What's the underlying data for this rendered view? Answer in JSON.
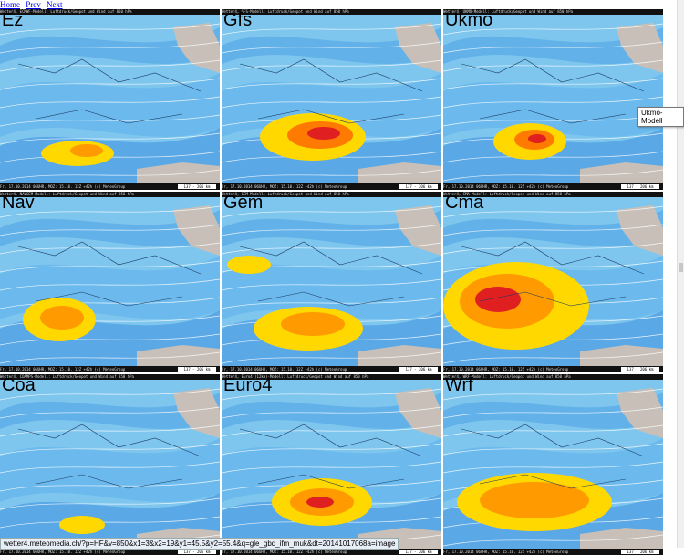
{
  "nav": {
    "home": "Home",
    "prev": "Prev",
    "next": "Next"
  },
  "panels": [
    {
      "name": "Ez",
      "header": "Wetter4, ECMWF-Modell: Luftdruck/Geopot und Wind auf 850 hPa",
      "footer": "Fr, 17.10.2014 06UHR, MOZ: 15.10. 12Z +42h (c) MeteoGroup",
      "scale": "137 - 206 km"
    },
    {
      "name": "Gfs",
      "header": "Wetter4, GFS-Modell: Luftdruck/Geopot und Wind auf 850 hPa",
      "footer": "Fr, 17.10.2014 06UHR, MOZ: 15.10. 12Z +42h (c) MeteoGroup",
      "scale": "137 - 206 km"
    },
    {
      "name": "Ukmo",
      "header": "Wetter4, UKMO-Modell: Luftdruck/Geopot und Wind auf 850 hPa",
      "footer": "Fr, 17.10.2014 06UHR, MOZ: 15.10. 12Z +42h (c) MeteoGroup",
      "scale": "137 - 206 km"
    },
    {
      "name": "Nav",
      "header": "Wetter4, NAVGEM-Modell: Luftdruck/Geopot und Wind auf 850 hPa",
      "footer": "Fr, 17.10.2014 06UHR, MOZ: 15.10. 12Z +42h (c) MeteoGroup",
      "scale": "137 - 206 km"
    },
    {
      "name": "Gem",
      "header": "Wetter4, GEM-Modell: Luftdruck/Geopot und Wind auf 850 hPa",
      "footer": "Fr, 17.10.2014 06UHR, MOZ: 15.10. 12Z +42h (c) MeteoGroup",
      "scale": "137 - 206 km"
    },
    {
      "name": "Cma",
      "header": "Wetter4, CMA-Modell: Luftdruck/Geopot und Wind auf 850 hPa",
      "footer": "Fr, 17.10.2014 06UHR, MOZ: 15.10. 12Z +42h (c) MeteoGroup",
      "scale": "137 - 206 km"
    },
    {
      "name": "Coa",
      "header": "Wetter4, COAMPS-Modell: Luftdruck/Geopot und Wind auf 850 hPa",
      "footer": "Fr, 17.10.2014 06UHR, MOZ: 15.10. 12Z +42h (c) MeteoGroup",
      "scale": "137 - 206 km"
    },
    {
      "name": "Euro4",
      "header": "Wetter4, Euro4 (12km)-Modell: Luftdruck/Geopot und Wind auf 850 hPa",
      "footer": "Fr, 17.10.2014 06UHR, MOZ: 15.10. 12Z +42h (c) MeteoGroup",
      "scale": "137 - 206 km"
    },
    {
      "name": "Wrf",
      "header": "Wetter4, WRF-Modell: Luftdruck/Geopot und Wind auf 850 hPa",
      "footer": "Fr, 17.10.2014 06UHR, MOZ: 15.10. 12Z +42h (c) MeteoGroup",
      "scale": "137 - 206 km"
    }
  ],
  "tooltip": "Ukmo-Modell",
  "status_url": "wetter4.meteomedia.ch/?p=HF&v=850&x1=3&x2=19&y1=45.5&y2=55.4&q=gle_gbd_ifm_muk&dt=20141017068a=image"
}
